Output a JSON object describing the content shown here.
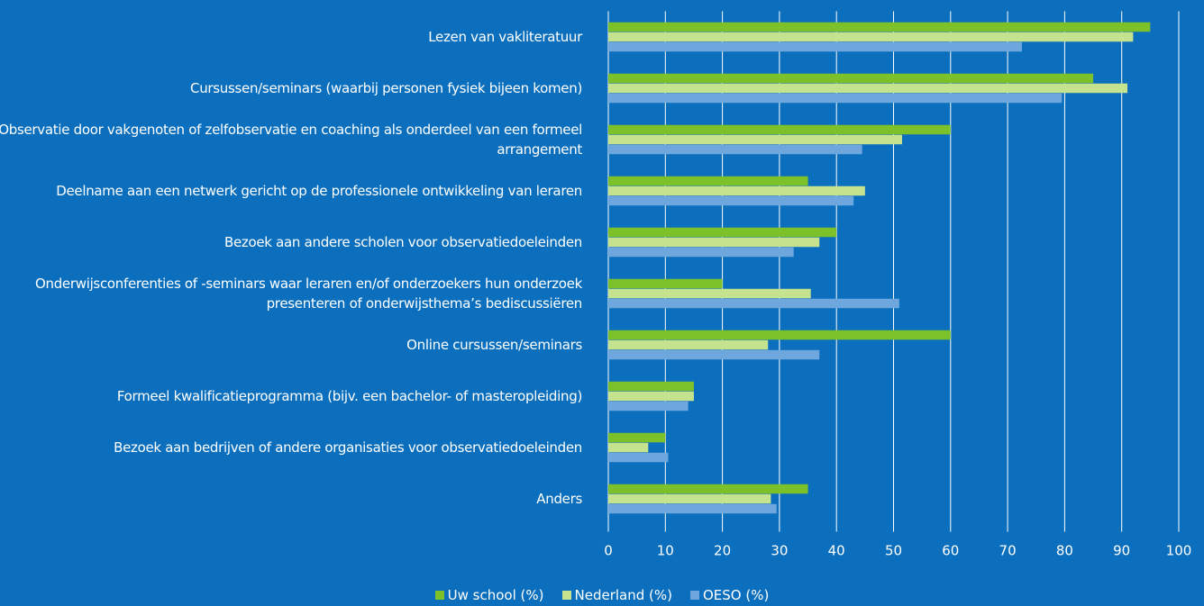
{
  "chart_data": {
    "type": "barh",
    "categories": [
      "Lezen van vakliteratuur",
      "Cursussen/seminars (waarbij personen fysiek bijeen komen)",
      "Observatie door vakgenoten of zelfobservatie en coaching als onderdeel van een formeel arrangement",
      "Deelname aan een netwerk gericht op de professionele ontwikkeling van leraren",
      "Bezoek aan andere scholen voor observatiedoeleinden",
      "Onderwijsconferenties of -seminars waar leraren en/of onderzoekers hun onderzoek presenteren of onderwijsthema’s bediscussiëren",
      "Online cursussen/seminars",
      "Formeel kwalificatieprogramma (bijv. een bachelor- of masteropleiding)",
      "Bezoek aan bedrijven of andere organisaties voor observatiedoeleinden",
      "Anders"
    ],
    "series": [
      {
        "name": "Uw school (%)",
        "color": "#7cc12a",
        "values": [
          95,
          85,
          60,
          35,
          40,
          20,
          60,
          15,
          10,
          35
        ]
      },
      {
        "name": "Nederland (%)",
        "color": "#c5e28f",
        "values": [
          92,
          91,
          51.5,
          45,
          37,
          35.5,
          28,
          15,
          7,
          28.5
        ]
      },
      {
        "name": "OESO (%)",
        "color": "#6ea6de",
        "values": [
          72.5,
          79.5,
          44.5,
          43,
          32.5,
          51,
          37,
          14,
          10.5,
          29.5
        ]
      }
    ],
    "xlim": [
      0,
      100
    ],
    "xticks": [
      0,
      10,
      20,
      30,
      40,
      50,
      60,
      70,
      80,
      90,
      100
    ],
    "grid": true,
    "legend": "bottom"
  }
}
